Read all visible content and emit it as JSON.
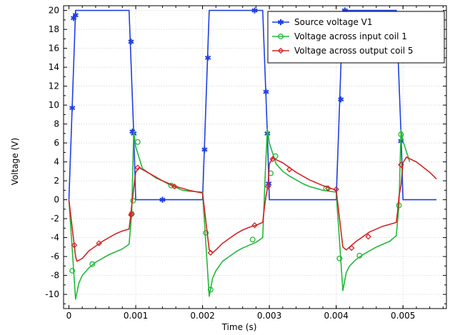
{
  "chart_data": {
    "type": "line",
    "title": "",
    "xlabel": "Time (s)",
    "ylabel": "Voltage (V)",
    "xlim": [
      -8e-05,
      0.00565
    ],
    "ylim": [
      -11.5,
      20.5
    ],
    "x_ticks": [
      0,
      0.001,
      0.002,
      0.003,
      0.004,
      0.005
    ],
    "x_tick_labels": [
      "0",
      "0.001",
      "0.002",
      "0.003",
      "0.004",
      "0.005"
    ],
    "y_ticks": [
      -10,
      -8,
      -6,
      -4,
      -2,
      0,
      2,
      4,
      6,
      8,
      10,
      12,
      14,
      16,
      18,
      20
    ],
    "y_tick_labels": [
      "-10",
      "-8",
      "-6",
      "-4",
      "-2",
      "0",
      "2",
      "4",
      "6",
      "8",
      "10",
      "12",
      "14",
      "16",
      "18",
      "20"
    ],
    "grid": true,
    "legend_position": "top-right",
    "series": [
      {
        "name": "Source voltage V1",
        "color": "#1f3fe0",
        "marker": "asterisk",
        "x": [
          0,
          0.0001,
          0.0009,
          0.00097,
          0.001,
          0.0018,
          0.002,
          0.0021,
          0.0029,
          0.00297,
          0.003,
          0.0038,
          0.004,
          0.0041,
          0.0049,
          0.00497,
          0.005,
          0.0055
        ],
        "y": [
          0,
          20,
          20,
          7,
          0,
          0,
          0,
          20,
          20,
          7,
          0,
          0,
          0,
          20,
          20,
          7,
          0,
          0
        ],
        "markers_x": [
          5e-05,
          7e-05,
          0.0001,
          0.00093,
          0.00095,
          0.00097,
          0.0014,
          0.00203,
          0.00208,
          0.00278,
          0.00295,
          0.00297,
          0.00299,
          0.00407,
          0.00413,
          0.00497
        ],
        "markers_y": [
          9.7,
          19.2,
          19.5,
          16.7,
          7.2,
          7.0,
          0.0,
          5.3,
          15.0,
          20.0,
          11.4,
          7.0,
          1.7,
          10.6,
          20.0,
          6.2
        ]
      },
      {
        "name": "Voltage across input coil 1",
        "color": "#22b83a",
        "marker": "circle",
        "x": [
          0,
          0.0001,
          0.00015,
          0.0002,
          0.0003,
          0.0004,
          0.0005,
          0.0006,
          0.0007,
          0.0008,
          0.0009,
          0.00094,
          0.00097,
          0.001,
          0.0011,
          0.0012,
          0.0013,
          0.0014,
          0.0015,
          0.0016,
          0.0017,
          0.0018,
          0.002,
          0.0021,
          0.00215,
          0.0022,
          0.0023,
          0.0024,
          0.0025,
          0.0026,
          0.0027,
          0.0028,
          0.0029,
          0.00294,
          0.00297,
          0.003,
          0.0031,
          0.0032,
          0.0033,
          0.0034,
          0.0035,
          0.0036,
          0.0037,
          0.0038,
          0.004,
          0.0041,
          0.00415,
          0.0042,
          0.0043,
          0.0044,
          0.0045,
          0.0046,
          0.0047,
          0.0048,
          0.0049,
          0.00494,
          0.00497,
          0.005,
          0.0051
        ],
        "y": [
          0,
          -10.5,
          -8.8,
          -8.0,
          -7.2,
          -6.6,
          -6.2,
          -5.8,
          -5.5,
          -5.2,
          -4.7,
          -1.5,
          7.2,
          5.6,
          3.3,
          2.8,
          2.3,
          2.0,
          1.6,
          1.3,
          1.0,
          0.9,
          0.8,
          -10.2,
          -8.3,
          -7.5,
          -6.5,
          -6.0,
          -5.5,
          -5.1,
          -4.8,
          -4.5,
          -4.0,
          3.0,
          7.5,
          6.0,
          3.8,
          3.0,
          2.5,
          2.1,
          1.7,
          1.4,
          1.2,
          1.0,
          0.8,
          -9.6,
          -7.7,
          -7.0,
          -6.3,
          -5.8,
          -5.4,
          -5.0,
          -4.7,
          -4.4,
          -3.8,
          -0.6,
          7.4,
          6.2,
          4.0
        ],
        "markers_x": [
          5e-05,
          0.00035,
          0.00094,
          0.00096,
          0.00103,
          0.00153,
          0.00205,
          0.00212,
          0.00275,
          0.00302,
          0.00309,
          0.00385,
          0.00405,
          0.00435,
          0.00494,
          0.00497
        ],
        "markers_y": [
          -7.5,
          -6.8,
          -1.5,
          -0.1,
          6.1,
          1.5,
          -3.5,
          -9.5,
          -4.2,
          2.8,
          4.6,
          1.2,
          -6.2,
          -5.9,
          -0.6,
          6.9
        ]
      },
      {
        "name": "Voltage across output coil 5",
        "color": "#d42424",
        "marker": "diamond",
        "x": [
          0,
          0.0001,
          0.00012,
          0.0002,
          0.0003,
          0.0004,
          0.0005,
          0.0006,
          0.0007,
          0.0008,
          0.0009,
          0.00092,
          0.00094,
          0.00097,
          0.001,
          0.00105,
          0.0012,
          0.0014,
          0.0016,
          0.0018,
          0.002,
          0.0021,
          0.00215,
          0.0022,
          0.0023,
          0.0024,
          0.0025,
          0.0026,
          0.0027,
          0.0028,
          0.0029,
          0.00292,
          0.00295,
          0.00298,
          0.003,
          0.00305,
          0.0032,
          0.0034,
          0.0036,
          0.0038,
          0.004,
          0.0041,
          0.00415,
          0.0042,
          0.0043,
          0.0044,
          0.0045,
          0.0046,
          0.0047,
          0.0048,
          0.0049,
          0.00492,
          0.00494,
          0.00497,
          0.005,
          0.00505,
          0.0052,
          0.0054,
          0.0055
        ],
        "y": [
          0,
          -6.0,
          -6.5,
          -6.2,
          -5.4,
          -4.9,
          -4.4,
          -4.0,
          -3.6,
          -3.3,
          -3.1,
          -2.0,
          -0.6,
          1.2,
          2.9,
          3.4,
          2.8,
          2.0,
          1.4,
          1.0,
          0.7,
          -5.3,
          -5.6,
          -5.3,
          -4.6,
          -4.1,
          -3.6,
          -3.2,
          -2.9,
          -2.7,
          -2.4,
          -1.2,
          0.4,
          1.5,
          3.8,
          4.4,
          3.9,
          2.9,
          2.1,
          1.5,
          1.0,
          -5.0,
          -5.3,
          -5.0,
          -4.4,
          -3.9,
          -3.4,
          -3.1,
          -2.8,
          -2.6,
          -2.4,
          -1.2,
          0.4,
          1.5,
          3.9,
          4.5,
          4.0,
          2.9,
          2.2
        ],
        "markers_x": [
          8e-05,
          0.00045,
          0.00093,
          0.00094,
          0.00103,
          0.00158,
          0.00212,
          0.00278,
          0.00298,
          0.00305,
          0.0033,
          0.00388,
          0.004,
          0.00423,
          0.00448,
          0.00497
        ],
        "markers_y": [
          -4.8,
          -4.6,
          -1.6,
          -1.5,
          3.4,
          1.4,
          -5.6,
          -2.7,
          1.4,
          4.3,
          3.2,
          1.2,
          1.1,
          -5.1,
          -3.9,
          3.7
        ]
      }
    ]
  }
}
